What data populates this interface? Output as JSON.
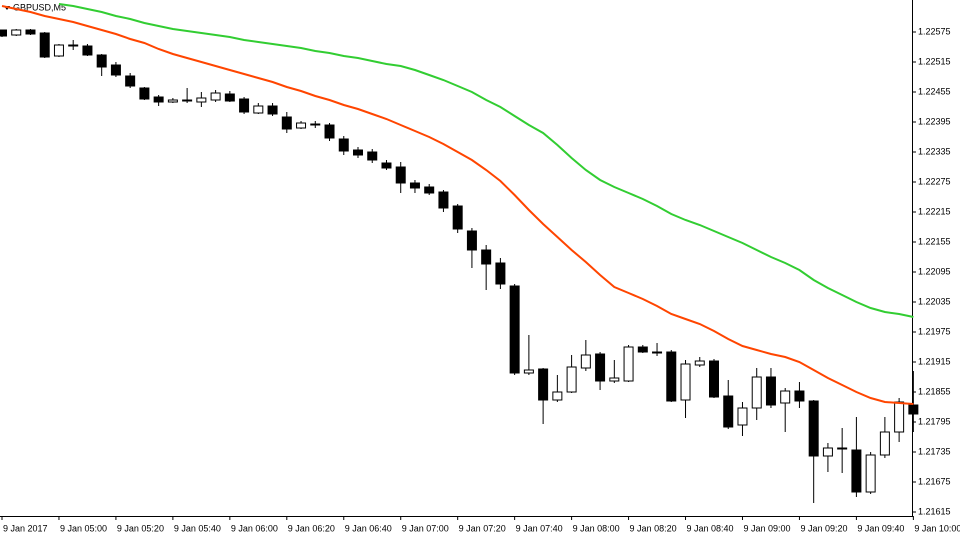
{
  "chart_data": {
    "type": "candlestick",
    "title": "GBPUSD,M5",
    "categories": [
      "9 Jan 2017",
      null,
      null,
      null,
      "9 Jan 05:00",
      null,
      null,
      null,
      "9 Jan 05:20",
      null,
      null,
      null,
      "9 Jan 05:40",
      null,
      null,
      null,
      "9 Jan 06:00",
      null,
      null,
      null,
      "9 Jan 06:20",
      null,
      null,
      null,
      "9 Jan 06:40",
      null,
      null,
      null,
      "9 Jan 07:00",
      null,
      null,
      null,
      "9 Jan 07:20",
      null,
      null,
      null,
      "9 Jan 07:40",
      null,
      null,
      null,
      "9 Jan 08:00",
      null,
      null,
      null,
      "9 Jan 08:20",
      null,
      null,
      null,
      "9 Jan 08:40",
      null,
      null,
      null,
      "9 Jan 09:00",
      null,
      null,
      null,
      "9 Jan 09:20",
      null,
      null,
      null,
      "9 Jan 09:40",
      null,
      null,
      null,
      "9 Jan 10:00"
    ],
    "candles": [
      {
        "open": 1.22579,
        "high": 1.22579,
        "low": 1.22565,
        "close": 1.22567
      },
      {
        "open": 1.22569,
        "high": 1.22581,
        "low": 1.22567,
        "close": 1.22579
      },
      {
        "open": 1.22579,
        "high": 1.22581,
        "low": 1.22569,
        "close": 1.22571
      },
      {
        "open": 1.22573,
        "high": 1.22575,
        "low": 1.22523,
        "close": 1.22525
      },
      {
        "open": 1.22527,
        "high": 1.22551,
        "low": 1.22525,
        "close": 1.22549
      },
      {
        "open": 1.22549,
        "high": 1.22559,
        "low": 1.22539,
        "close": 1.22547
      },
      {
        "open": 1.22547,
        "high": 1.22551,
        "low": 1.22527,
        "close": 1.22529
      },
      {
        "open": 1.22529,
        "high": 1.22531,
        "low": 1.22487,
        "close": 1.22505
      },
      {
        "open": 1.22509,
        "high": 1.22515,
        "low": 1.22485,
        "close": 1.22489
      },
      {
        "open": 1.22487,
        "high": 1.22493,
        "low": 1.22463,
        "close": 1.22467
      },
      {
        "open": 1.22463,
        "high": 1.22465,
        "low": 1.22439,
        "close": 1.22441
      },
      {
        "open": 1.22445,
        "high": 1.22449,
        "low": 1.22427,
        "close": 1.22435
      },
      {
        "open": 1.22435,
        "high": 1.22443,
        "low": 1.22433,
        "close": 1.22439
      },
      {
        "open": 1.22437,
        "high": 1.22463,
        "low": 1.22433,
        "close": 1.22439
      },
      {
        "open": 1.22435,
        "high": 1.22455,
        "low": 1.22425,
        "close": 1.22443
      },
      {
        "open": 1.22439,
        "high": 1.22459,
        "low": 1.22435,
        "close": 1.22453
      },
      {
        "open": 1.22451,
        "high": 1.22457,
        "low": 1.22435,
        "close": 1.22437
      },
      {
        "open": 1.22441,
        "high": 1.22445,
        "low": 1.22411,
        "close": 1.22415
      },
      {
        "open": 1.22413,
        "high": 1.22433,
        "low": 1.22411,
        "close": 1.22427
      },
      {
        "open": 1.22427,
        "high": 1.22433,
        "low": 1.22407,
        "close": 1.22411
      },
      {
        "open": 1.22405,
        "high": 1.22415,
        "low": 1.22373,
        "close": 1.22381
      },
      {
        "open": 1.22383,
        "high": 1.22397,
        "low": 1.22381,
        "close": 1.22393
      },
      {
        "open": 1.22391,
        "high": 1.22397,
        "low": 1.22383,
        "close": 1.22389
      },
      {
        "open": 1.22389,
        "high": 1.22393,
        "low": 1.22357,
        "close": 1.22363
      },
      {
        "open": 1.22361,
        "high": 1.22367,
        "low": 1.22329,
        "close": 1.22337
      },
      {
        "open": 1.22339,
        "high": 1.22345,
        "low": 1.22323,
        "close": 1.22329
      },
      {
        "open": 1.22335,
        "high": 1.22341,
        "low": 1.22313,
        "close": 1.22319
      },
      {
        "open": 1.22313,
        "high": 1.22319,
        "low": 1.22299,
        "close": 1.22303
      },
      {
        "open": 1.22305,
        "high": 1.22315,
        "low": 1.22253,
        "close": 1.22273
      },
      {
        "open": 1.22273,
        "high": 1.22279,
        "low": 1.22253,
        "close": 1.22263
      },
      {
        "open": 1.22265,
        "high": 1.22271,
        "low": 1.22249,
        "close": 1.22253
      },
      {
        "open": 1.22255,
        "high": 1.22259,
        "low": 1.22215,
        "close": 1.22223
      },
      {
        "open": 1.22227,
        "high": 1.22231,
        "low": 1.22173,
        "close": 1.22181
      },
      {
        "open": 1.22177,
        "high": 1.22183,
        "low": 1.22103,
        "close": 1.22139
      },
      {
        "open": 1.22139,
        "high": 1.22149,
        "low": 1.22059,
        "close": 1.22111
      },
      {
        "open": 1.22113,
        "high": 1.22123,
        "low": 1.22061,
        "close": 1.22071
      },
      {
        "open": 1.22067,
        "high": 1.22071,
        "low": 1.21889,
        "close": 1.21893
      },
      {
        "open": 1.21893,
        "high": 1.21969,
        "low": 1.21889,
        "close": 1.21899
      },
      {
        "open": 1.21901,
        "high": 1.21903,
        "low": 1.21791,
        "close": 1.21839
      },
      {
        "open": 1.21839,
        "high": 1.21889,
        "low": 1.21835,
        "close": 1.21855
      },
      {
        "open": 1.21855,
        "high": 1.21929,
        "low": 1.21853,
        "close": 1.21905
      },
      {
        "open": 1.21903,
        "high": 1.21959,
        "low": 1.21897,
        "close": 1.21929
      },
      {
        "open": 1.21931,
        "high": 1.21935,
        "low": 1.21859,
        "close": 1.21877
      },
      {
        "open": 1.21877,
        "high": 1.21919,
        "low": 1.21873,
        "close": 1.21883
      },
      {
        "open": 1.21877,
        "high": 1.21949,
        "low": 1.21875,
        "close": 1.21945
      },
      {
        "open": 1.21945,
        "high": 1.21949,
        "low": 1.21933,
        "close": 1.21935
      },
      {
        "open": 1.21935,
        "high": 1.21953,
        "low": 1.21927,
        "close": 1.21933
      },
      {
        "open": 1.21935,
        "high": 1.21939,
        "low": 1.21835,
        "close": 1.21837
      },
      {
        "open": 1.21839,
        "high": 1.21919,
        "low": 1.21803,
        "close": 1.21911
      },
      {
        "open": 1.21909,
        "high": 1.21925,
        "low": 1.21905,
        "close": 1.21917
      },
      {
        "open": 1.21917,
        "high": 1.21921,
        "low": 1.21843,
        "close": 1.21845
      },
      {
        "open": 1.21847,
        "high": 1.21879,
        "low": 1.21781,
        "close": 1.21785
      },
      {
        "open": 1.21789,
        "high": 1.21835,
        "low": 1.21767,
        "close": 1.21823
      },
      {
        "open": 1.21823,
        "high": 1.21903,
        "low": 1.21799,
        "close": 1.21885
      },
      {
        "open": 1.21885,
        "high": 1.21903,
        "low": 1.21823,
        "close": 1.21829
      },
      {
        "open": 1.21833,
        "high": 1.21863,
        "low": 1.21775,
        "close": 1.21857
      },
      {
        "open": 1.21857,
        "high": 1.21875,
        "low": 1.21823,
        "close": 1.21837
      },
      {
        "open": 1.21837,
        "high": 1.21839,
        "low": 1.21633,
        "close": 1.21727
      },
      {
        "open": 1.21727,
        "high": 1.21753,
        "low": 1.21695,
        "close": 1.21743
      },
      {
        "open": 1.21743,
        "high": 1.21783,
        "low": 1.21693,
        "close": 1.21741
      },
      {
        "open": 1.21739,
        "high": 1.21805,
        "low": 1.21645,
        "close": 1.21655
      },
      {
        "open": 1.21655,
        "high": 1.21735,
        "low": 1.21651,
        "close": 1.21729
      },
      {
        "open": 1.21729,
        "high": 1.21805,
        "low": 1.21723,
        "close": 1.21775
      },
      {
        "open": 1.21775,
        "high": 1.21843,
        "low": 1.21755,
        "close": 1.21835
      },
      {
        "open": 1.21829,
        "high": 1.21897,
        "low": 1.21775,
        "close": 1.21811
      }
    ],
    "overlays": [
      {
        "color": "#32cd32",
        "values": [
          null,
          null,
          null,
          null,
          1.22631,
          1.22627,
          1.22621,
          1.22615,
          1.22607,
          1.22601,
          1.22593,
          1.22587,
          1.22581,
          1.22577,
          1.22573,
          1.22569,
          1.22565,
          1.22559,
          1.22555,
          1.22551,
          1.22547,
          1.22543,
          1.22537,
          1.22533,
          1.22527,
          1.22523,
          1.22517,
          1.22511,
          1.22507,
          1.22499,
          1.22489,
          1.22479,
          1.22467,
          1.22455,
          1.22439,
          1.22425,
          1.22407,
          1.22389,
          1.22373,
          1.22349,
          1.22323,
          1.22299,
          1.22279,
          1.22265,
          1.22253,
          1.22241,
          1.22227,
          1.22211,
          1.22199,
          1.22189,
          1.22177,
          1.22165,
          1.22153,
          1.22139,
          1.22125,
          1.22113,
          1.22099,
          1.22079,
          1.22063,
          1.22049,
          1.22035,
          1.22023,
          1.22015,
          1.22011,
          1.22005
        ]
      },
      {
        "color": "#ff4500",
        "values": [
          1.22627,
          1.22621,
          1.22615,
          1.22607,
          1.22601,
          1.22595,
          1.22587,
          1.22579,
          1.22571,
          1.22561,
          1.22553,
          1.22541,
          1.22531,
          1.22523,
          1.22515,
          1.22507,
          1.22499,
          1.22491,
          1.22483,
          1.22475,
          1.22465,
          1.22457,
          1.22447,
          1.22439,
          1.22429,
          1.22421,
          1.22411,
          1.22401,
          1.22389,
          1.22377,
          1.22365,
          1.22351,
          1.22335,
          1.22319,
          1.22299,
          1.22277,
          1.22249,
          1.22219,
          1.22191,
          1.22165,
          1.22139,
          1.22115,
          1.22089,
          1.22065,
          1.22053,
          1.22041,
          1.22027,
          1.22011,
          1.22001,
          1.21991,
          1.21977,
          1.21961,
          1.21947,
          1.21939,
          1.21931,
          1.21925,
          1.21915,
          1.21899,
          1.21883,
          1.21869,
          1.21855,
          1.21843,
          1.21835,
          1.21833,
          1.21831
        ]
      }
    ],
    "up_color": "#ffffff",
    "down_color": "#000000",
    "wick_color": "#000000",
    "ylim": [
      1.21607,
      1.22631
    ],
    "yticks": [
      1.21615,
      1.21675,
      1.21735,
      1.21795,
      1.21855,
      1.21915,
      1.21975,
      1.22035,
      1.22095,
      1.22155,
      1.22215,
      1.22275,
      1.22335,
      1.22395,
      1.22455,
      1.22515,
      1.22575
    ],
    "grid": false
  }
}
